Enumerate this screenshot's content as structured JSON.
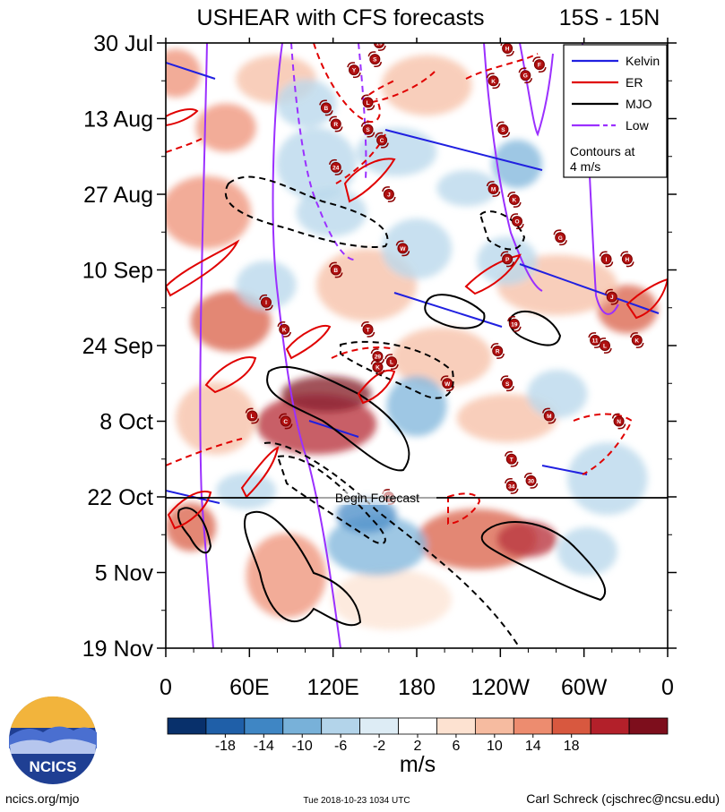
{
  "title_left": "USHEAR with CFS forecasts",
  "title_right": "15S - 15N",
  "begin_forecast_label": "Begin Forecast",
  "legend": {
    "items": [
      {
        "label": "Kelvin",
        "color": "#2020e0"
      },
      {
        "label": "ER",
        "color": "#e00000"
      },
      {
        "label": "MJO",
        "color": "#000000"
      },
      {
        "label": "Low",
        "color": "#9b30ff"
      }
    ],
    "note_line1": "Contours at",
    "note_line2": "4 m/s"
  },
  "colorbar": {
    "unit": "m/s",
    "tick_labels": [
      "-18",
      "-14",
      "-10",
      "-6",
      "-2",
      "2",
      "6",
      "10",
      "14",
      "18"
    ],
    "colors": [
      "#08306b",
      "#1f5fa8",
      "#3f86c4",
      "#78b1d9",
      "#b3d4ea",
      "#ddecf5",
      "#ffffff",
      "#fde2d1",
      "#f6bba0",
      "#ed8c6f",
      "#d8583f",
      "#b3202a",
      "#7d0e1c"
    ]
  },
  "footer": {
    "left": "ncics.org/mjo",
    "center": "Tue 2018-10-23 1034 UTC",
    "right": "Carl Schreck (cjschrec@ncsu.edu)",
    "logo_text": "NCICS"
  },
  "chart_data": {
    "type": "heatmap",
    "title": "USHEAR with CFS forecasts",
    "subtitle": "15S - 15N",
    "x_axis": {
      "tick_labels": [
        "0",
        "60E",
        "120E",
        "180",
        "120W",
        "60W",
        "0"
      ],
      "range_deg_east": [
        0,
        360
      ]
    },
    "y_axis": {
      "tick_labels": [
        "30 Jul",
        "13 Aug",
        "27 Aug",
        "10 Sep",
        "24 Sep",
        "8 Oct",
        "22 Oct",
        "5 Nov",
        "19 Nov"
      ],
      "range": [
        "2018-07-30",
        "2018-11-19"
      ]
    },
    "forecast_start": "2018-10-22",
    "color_levels_m_per_s": [
      -18,
      -14,
      -10,
      -6,
      -2,
      2,
      6,
      10,
      14,
      18
    ],
    "contour_interval_m_per_s": 4,
    "series": [
      {
        "name": "Kelvin",
        "color": "#2020e0"
      },
      {
        "name": "ER",
        "color": "#e00000"
      },
      {
        "name": "MJO",
        "color": "#000000"
      },
      {
        "name": "Low",
        "color": "#9b30ff"
      }
    ],
    "storm_markers": [
      {
        "label": "B",
        "lon": 115,
        "date": "2018-08-11"
      },
      {
        "label": "R",
        "lon": 122,
        "date": "2018-08-14"
      },
      {
        "label": "S",
        "lon": 145,
        "date": "2018-08-15"
      },
      {
        "label": "C",
        "lon": 155,
        "date": "2018-08-17"
      },
      {
        "label": "24",
        "lon": 122,
        "date": "2018-08-22"
      },
      {
        "label": "J",
        "lon": 160,
        "date": "2018-08-27"
      },
      {
        "label": "L",
        "lon": 145,
        "date": "2018-08-10"
      },
      {
        "label": "Y",
        "lon": 135,
        "date": "2018-08-04"
      },
      {
        "label": "S",
        "lon": 150,
        "date": "2018-08-02"
      },
      {
        "label": "H",
        "lon": 245,
        "date": "2018-07-31"
      },
      {
        "label": "K",
        "lon": 235,
        "date": "2018-08-06"
      },
      {
        "label": "G",
        "lon": 258,
        "date": "2018-08-05"
      },
      {
        "label": "F",
        "lon": 268,
        "date": "2018-08-03"
      },
      {
        "label": "S",
        "lon": 242,
        "date": "2018-08-15"
      },
      {
        "label": "M",
        "lon": 235,
        "date": "2018-08-26"
      },
      {
        "label": "K",
        "lon": 250,
        "date": "2018-08-28"
      },
      {
        "label": "O",
        "lon": 252,
        "date": "2018-09-01"
      },
      {
        "label": "G",
        "lon": 283,
        "date": "2018-09-04"
      },
      {
        "label": "P",
        "lon": 245,
        "date": "2018-09-08"
      },
      {
        "label": "I",
        "lon": 316,
        "date": "2018-09-08"
      },
      {
        "label": "H",
        "lon": 331,
        "date": "2018-09-08"
      },
      {
        "label": "J",
        "lon": 320,
        "date": "2018-09-15"
      },
      {
        "label": "I",
        "lon": 72,
        "date": "2018-09-16"
      },
      {
        "label": "K",
        "lon": 85,
        "date": "2018-09-21"
      },
      {
        "label": "T",
        "lon": 145,
        "date": "2018-09-21"
      },
      {
        "label": "W",
        "lon": 170,
        "date": "2018-09-06"
      },
      {
        "label": "B",
        "lon": 122,
        "date": "2018-09-10"
      },
      {
        "label": "19",
        "lon": 250,
        "date": "2018-09-20"
      },
      {
        "label": "11",
        "lon": 308,
        "date": "2018-09-23"
      },
      {
        "label": "L",
        "lon": 315,
        "date": "2018-09-24"
      },
      {
        "label": "K",
        "lon": 338,
        "date": "2018-09-23"
      },
      {
        "label": "R",
        "lon": 238,
        "date": "2018-09-25"
      },
      {
        "label": "S",
        "lon": 245,
        "date": "2018-10-01"
      },
      {
        "label": "29",
        "lon": 152,
        "date": "2018-09-26"
      },
      {
        "label": "K",
        "lon": 152,
        "date": "2018-09-28"
      },
      {
        "label": "L",
        "lon": 162,
        "date": "2018-09-27"
      },
      {
        "label": "W",
        "lon": 202,
        "date": "2018-10-01"
      },
      {
        "label": "L",
        "lon": 62,
        "date": "2018-10-07"
      },
      {
        "label": "C",
        "lon": 86,
        "date": "2018-10-08"
      },
      {
        "label": "M",
        "lon": 275,
        "date": "2018-10-07"
      },
      {
        "label": "N",
        "lon": 325,
        "date": "2018-10-08"
      },
      {
        "label": "T",
        "lon": 248,
        "date": "2018-10-15"
      },
      {
        "label": "34",
        "lon": 248,
        "date": "2018-10-20"
      },
      {
        "label": "30",
        "lon": 262,
        "date": "2018-10-19"
      },
      {
        "label": "Y",
        "lon": 160,
        "date": "2018-10-22"
      },
      {
        "label": "19",
        "lon": 153,
        "date": "2018-07-30"
      }
    ]
  }
}
